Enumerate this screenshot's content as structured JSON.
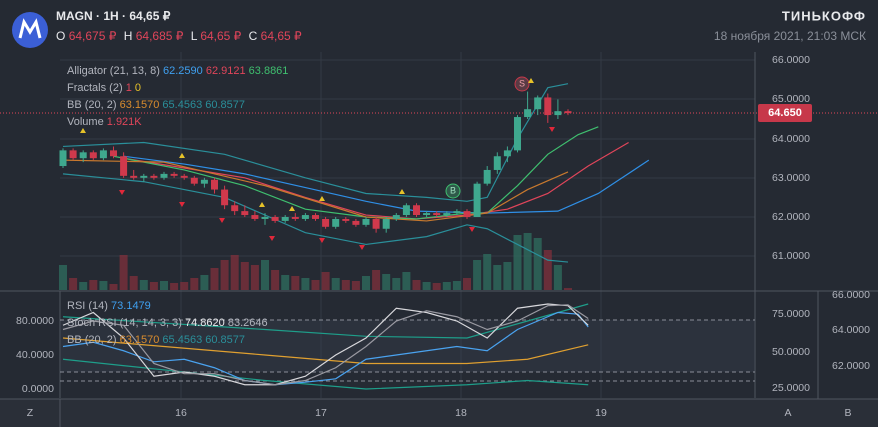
{
  "header": {
    "symbol": "MAGN",
    "interval": "1H",
    "price": "64,65 ₽",
    "ohlc": [
      {
        "key": "O",
        "value": "64,675 ₽"
      },
      {
        "key": "H",
        "value": "64,685 ₽"
      },
      {
        "key": "L",
        "value": "64,65 ₽"
      },
      {
        "key": "C",
        "value": "64,65 ₽"
      }
    ],
    "brand": "ТИНЬКОФФ",
    "datetime": "18 ноября 2021, 21:03 МСК"
  },
  "legend": {
    "alligator": {
      "name": "Alligator (21, 13, 8)",
      "values": [
        "62.2590",
        "62.9121",
        "63.8861"
      ]
    },
    "fractals": {
      "name": "Fractals (2)",
      "values": [
        "1",
        "0"
      ]
    },
    "bb": {
      "name": "BB (20, 2)",
      "values": [
        "63.1570",
        "65.4563",
        "60.8577"
      ]
    },
    "volume": {
      "name": "Volume",
      "value": "1.921K"
    }
  },
  "lower_legend": {
    "rsi": {
      "name": "RSI (14)",
      "value": "73.1479"
    },
    "stoch": {
      "name": "Stoch RSI (14, 14, 3, 3)",
      "values": [
        "74.8620",
        "83.2646"
      ]
    },
    "bb": {
      "name": "BB (20, 2)",
      "values": [
        "63.1570",
        "65.4563",
        "60.8577"
      ]
    }
  },
  "price_axis": [
    "66.0000",
    "65.0000",
    "64.0000",
    "63.0000",
    "62.0000",
    "61.0000"
  ],
  "current_price": "64.650",
  "lower_axis_left": [
    "80.0000",
    "40.0000",
    "0.0000"
  ],
  "lower_axis_right": [
    "66.0000",
    "75.0000",
    "64.0000",
    "50.0000",
    "62.0000",
    "25.0000"
  ],
  "time_axis": [
    "Z",
    "16",
    "17",
    "18",
    "19",
    "A",
    "B"
  ],
  "signals": [
    "S",
    "B"
  ],
  "candles": [
    [
      63.3,
      63.75,
      63.25,
      63.7
    ],
    [
      63.7,
      63.75,
      63.45,
      63.5
    ],
    [
      63.5,
      63.7,
      63.4,
      63.65
    ],
    [
      63.65,
      63.7,
      63.45,
      63.5
    ],
    [
      63.5,
      63.75,
      63.45,
      63.7
    ],
    [
      63.7,
      63.8,
      63.5,
      63.55
    ],
    [
      63.55,
      63.65,
      63.0,
      63.05
    ],
    [
      63.05,
      63.2,
      62.95,
      63.0
    ],
    [
      63.0,
      63.1,
      62.9,
      63.05
    ],
    [
      63.05,
      63.1,
      62.95,
      63.0
    ],
    [
      63.0,
      63.15,
      62.95,
      63.1
    ],
    [
      63.1,
      63.15,
      63.0,
      63.05
    ],
    [
      63.05,
      63.1,
      62.95,
      63.0
    ],
    [
      63.0,
      63.05,
      62.8,
      62.85
    ],
    [
      62.85,
      63.0,
      62.75,
      62.95
    ],
    [
      62.95,
      63.0,
      62.6,
      62.7
    ],
    [
      62.7,
      62.8,
      62.2,
      62.3
    ],
    [
      62.3,
      62.4,
      62.05,
      62.15
    ],
    [
      62.15,
      62.3,
      62.0,
      62.05
    ],
    [
      62.05,
      62.15,
      61.9,
      61.95
    ],
    [
      61.95,
      62.1,
      61.8,
      62.0
    ],
    [
      62.0,
      62.05,
      61.85,
      61.9
    ],
    [
      61.9,
      62.05,
      61.85,
      62.0
    ],
    [
      62.0,
      62.1,
      61.9,
      61.95
    ],
    [
      61.95,
      62.1,
      61.9,
      62.05
    ],
    [
      62.05,
      62.1,
      61.9,
      61.95
    ],
    [
      61.95,
      62.0,
      61.7,
      61.75
    ],
    [
      61.75,
      62.0,
      61.7,
      61.95
    ],
    [
      61.95,
      62.0,
      61.85,
      61.9
    ],
    [
      61.9,
      61.95,
      61.75,
      61.8
    ],
    [
      61.8,
      62.0,
      61.75,
      61.95
    ],
    [
      61.95,
      62.0,
      61.6,
      61.7
    ],
    [
      61.7,
      62.0,
      61.6,
      61.95
    ],
    [
      61.95,
      62.1,
      61.9,
      62.05
    ],
    [
      62.05,
      62.35,
      62.0,
      62.3
    ],
    [
      62.3,
      62.35,
      62.0,
      62.05
    ],
    [
      62.05,
      62.15,
      62.0,
      62.1
    ],
    [
      62.1,
      62.15,
      62.0,
      62.05
    ],
    [
      62.05,
      62.15,
      62.0,
      62.1
    ],
    [
      62.1,
      62.2,
      62.05,
      62.15
    ],
    [
      62.15,
      62.2,
      61.95,
      62.0
    ],
    [
      62.0,
      62.9,
      62.0,
      62.85
    ],
    [
      62.85,
      63.3,
      62.8,
      63.2
    ],
    [
      63.2,
      63.65,
      63.1,
      63.55
    ],
    [
      63.55,
      63.8,
      63.4,
      63.7
    ],
    [
      63.7,
      64.6,
      63.65,
      64.55
    ],
    [
      64.55,
      65.2,
      64.5,
      64.75
    ],
    [
      64.75,
      65.1,
      64.6,
      65.05
    ],
    [
      65.05,
      65.15,
      64.4,
      64.6
    ],
    [
      64.6,
      65.0,
      64.5,
      64.7
    ],
    [
      64.7,
      64.75,
      64.6,
      64.65
    ]
  ],
  "volume": [
    25,
    12,
    8,
    10,
    9,
    6,
    35,
    14,
    10,
    8,
    9,
    7,
    8,
    12,
    15,
    22,
    30,
    35,
    28,
    25,
    30,
    20,
    15,
    14,
    12,
    10,
    18,
    12,
    10,
    9,
    14,
    20,
    16,
    12,
    18,
    10,
    8,
    7,
    8,
    9,
    12,
    30,
    36,
    25,
    28,
    55,
    57,
    52,
    40,
    25,
    1.921
  ],
  "price_lines": [
    {
      "color": "#2f8fe6",
      "points": [
        [
          6,
          63.55
        ],
        [
          12,
          63.35
        ],
        [
          18,
          63.1
        ],
        [
          24,
          62.75
        ],
        [
          30,
          62.4
        ],
        [
          35,
          62.15
        ],
        [
          42,
          62.1
        ],
        [
          49,
          62.15
        ],
        [
          53,
          62.6
        ],
        [
          58,
          63.45
        ]
      ]
    },
    {
      "color": "#e0455a",
      "points": [
        [
          6,
          63.5
        ],
        [
          12,
          63.25
        ],
        [
          18,
          63.0
        ],
        [
          24,
          62.5
        ],
        [
          30,
          62.05
        ],
        [
          35,
          61.95
        ],
        [
          40,
          62.05
        ],
        [
          44,
          62.2
        ],
        [
          48,
          62.6
        ],
        [
          52,
          63.3
        ],
        [
          56,
          63.9
        ]
      ]
    },
    {
      "color": "#3fbf6f",
      "points": [
        [
          5,
          63.55
        ],
        [
          12,
          63.2
        ],
        [
          18,
          62.8
        ],
        [
          24,
          62.2
        ],
        [
          30,
          62.0
        ],
        [
          35,
          61.95
        ],
        [
          40,
          62.1
        ],
        [
          42,
          62.1
        ],
        [
          45,
          62.8
        ],
        [
          48,
          63.6
        ],
        [
          51,
          64.1
        ],
        [
          53,
          64.3
        ]
      ]
    },
    {
      "color": "#2a8f9a",
      "points": [
        [
          0,
          63.8
        ],
        [
          8,
          63.9
        ],
        [
          16,
          63.6
        ],
        [
          24,
          63.0
        ],
        [
          30,
          62.6
        ],
        [
          36,
          62.5
        ],
        [
          40,
          62.4
        ],
        [
          42,
          62.5
        ],
        [
          45,
          64.0
        ],
        [
          48,
          65.3
        ],
        [
          50,
          65.4
        ]
      ]
    },
    {
      "color": "#2a8f9a",
      "points": [
        [
          0,
          63.1
        ],
        [
          8,
          62.9
        ],
        [
          16,
          62.5
        ],
        [
          24,
          61.6
        ],
        [
          30,
          61.3
        ],
        [
          36,
          61.5
        ],
        [
          40,
          61.8
        ],
        [
          42,
          61.7
        ],
        [
          45,
          61.3
        ],
        [
          48,
          60.9
        ],
        [
          50,
          60.85
        ]
      ]
    },
    {
      "color": "#c8792e",
      "points": [
        [
          0,
          63.45
        ],
        [
          10,
          63.4
        ],
        [
          20,
          62.8
        ],
        [
          30,
          62.0
        ],
        [
          36,
          61.9
        ],
        [
          42,
          62.1
        ],
        [
          46,
          62.7
        ],
        [
          50,
          63.15
        ]
      ]
    }
  ],
  "osc_lines": [
    {
      "color": "#1e9e8a",
      "points": [
        [
          0,
          85
        ],
        [
          20,
          70
        ],
        [
          30,
          62
        ],
        [
          40,
          60
        ],
        [
          46,
          80
        ],
        [
          52,
          100
        ]
      ]
    },
    {
      "color": "#1e9e8a",
      "points": [
        [
          0,
          35
        ],
        [
          20,
          10
        ],
        [
          30,
          0
        ],
        [
          40,
          5
        ],
        [
          46,
          10
        ],
        [
          52,
          5
        ]
      ]
    },
    {
      "color": "#e0a030",
      "points": [
        [
          0,
          60
        ],
        [
          10,
          50
        ],
        [
          20,
          40
        ],
        [
          30,
          30
        ],
        [
          40,
          30
        ],
        [
          46,
          35
        ],
        [
          52,
          52
        ]
      ]
    },
    {
      "color": "#4aa3f0",
      "points": [
        [
          0,
          50
        ],
        [
          3,
          55
        ],
        [
          6,
          45
        ],
        [
          9,
          32
        ],
        [
          12,
          35
        ],
        [
          15,
          25
        ],
        [
          18,
          10
        ],
        [
          21,
          5
        ],
        [
          24,
          8
        ],
        [
          27,
          12
        ],
        [
          30,
          35
        ],
        [
          33,
          40
        ],
        [
          36,
          45
        ],
        [
          39,
          50
        ],
        [
          42,
          45
        ],
        [
          45,
          70
        ],
        [
          47,
          80
        ],
        [
          49,
          90
        ],
        [
          51,
          88
        ],
        [
          52,
          73
        ]
      ]
    },
    {
      "color": "#d8d8dc",
      "points": [
        [
          0,
          75
        ],
        [
          3,
          90
        ],
        [
          6,
          60
        ],
        [
          9,
          15
        ],
        [
          12,
          20
        ],
        [
          15,
          15
        ],
        [
          18,
          5
        ],
        [
          21,
          5
        ],
        [
          24,
          15
        ],
        [
          27,
          40
        ],
        [
          30,
          60
        ],
        [
          33,
          95
        ],
        [
          36,
          90
        ],
        [
          39,
          80
        ],
        [
          42,
          60
        ],
        [
          45,
          95
        ],
        [
          48,
          100
        ],
        [
          50,
          98
        ],
        [
          52,
          75
        ]
      ]
    },
    {
      "color": "#9a9aa2",
      "points": [
        [
          0,
          70
        ],
        [
          3,
          80
        ],
        [
          6,
          75
        ],
        [
          9,
          30
        ],
        [
          12,
          18
        ],
        [
          15,
          18
        ],
        [
          18,
          10
        ],
        [
          21,
          5
        ],
        [
          24,
          10
        ],
        [
          27,
          25
        ],
        [
          30,
          50
        ],
        [
          33,
          80
        ],
        [
          36,
          92
        ],
        [
          39,
          85
        ],
        [
          42,
          70
        ],
        [
          45,
          80
        ],
        [
          48,
          98
        ],
        [
          50,
          99
        ],
        [
          52,
          83
        ]
      ]
    }
  ]
}
